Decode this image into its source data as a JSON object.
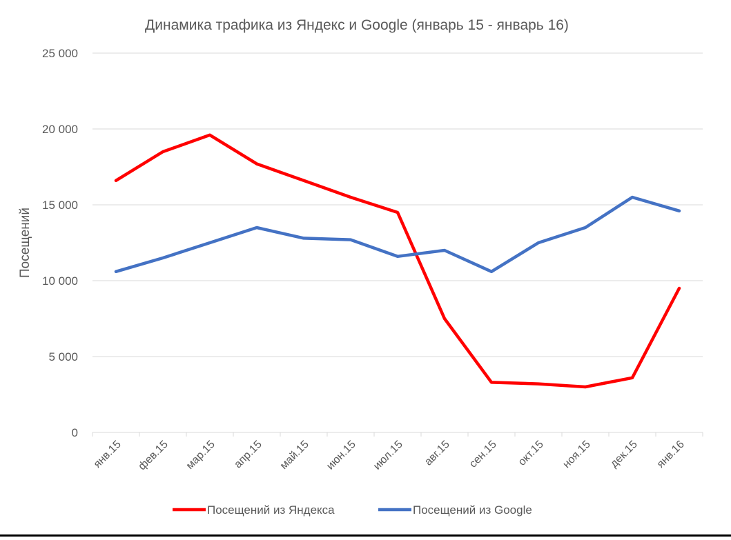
{
  "chart_data": {
    "type": "line",
    "title": "Динамика трафика из Яндекс и Google (январь 15 - январь 16)",
    "xlabel": "",
    "ylabel": "Посещений",
    "ylim": [
      0,
      25000
    ],
    "yticks": [
      0,
      5000,
      10000,
      15000,
      20000,
      25000
    ],
    "ytick_labels": [
      "0",
      "5 000",
      "10 000",
      "15 000",
      "20 000",
      "25 000"
    ],
    "grid": true,
    "legend_position": "bottom",
    "categories": [
      "янв.15",
      "фев.15",
      "мар.15",
      "апр.15",
      "май.15",
      "июн.15",
      "июл.15",
      "авг.15",
      "сен.15",
      "окт.15",
      "ноя.15",
      "дек.15",
      "янв.16"
    ],
    "series": [
      {
        "name": "Посещений из Яндекса",
        "color": "#ff0000",
        "values": [
          16600,
          18500,
          19600,
          17700,
          16600,
          15500,
          14500,
          7500,
          3300,
          3200,
          3000,
          3600,
          9500
        ]
      },
      {
        "name": "Посещений из Google",
        "color": "#4472c4",
        "values": [
          10600,
          11500,
          12500,
          13500,
          12800,
          12700,
          11600,
          12000,
          10600,
          12500,
          13500,
          15500,
          14600
        ]
      }
    ]
  }
}
